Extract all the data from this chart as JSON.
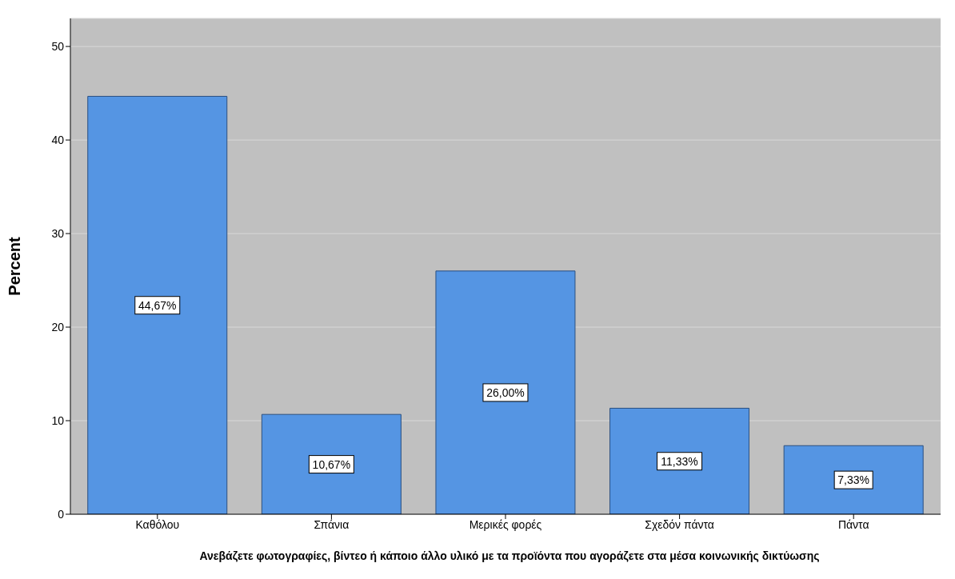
{
  "chart_data": {
    "type": "bar",
    "xlabel": "Ανεβάζετε φωτογραφίες, βίντεο ή κάποιο άλλο υλικό με τα προϊόντα που αγοράζετε στα μέσα κοινωνικής δικτύωσης",
    "ylabel": "Percent",
    "categories": [
      "Καθόλου",
      "Σπάνια",
      "Μερικές φορές",
      "Σχεδόν πάντα",
      "Πάντα"
    ],
    "values": [
      44.67,
      10.67,
      26.0,
      11.33,
      7.33
    ],
    "value_labels": [
      "44,67%",
      "10,67%",
      "26,00%",
      "11,33%",
      "7,33%"
    ],
    "color": "#5595e3",
    "ylim": [
      0,
      53
    ],
    "yticks": [
      0,
      10,
      20,
      30,
      40,
      50
    ],
    "grid": "y"
  }
}
